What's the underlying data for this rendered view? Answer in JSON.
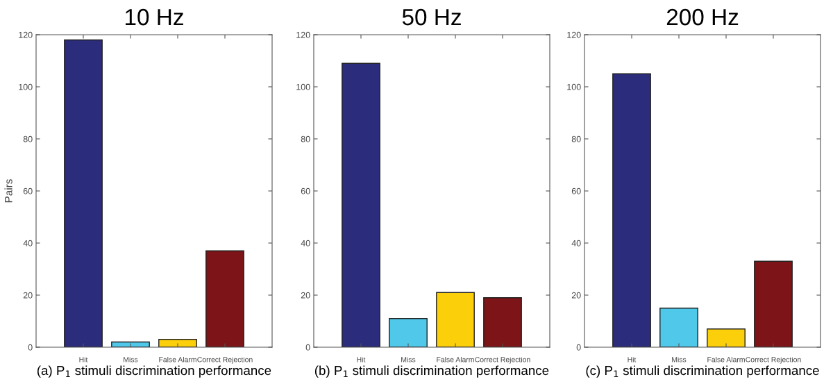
{
  "chart_data": [
    {
      "type": "bar",
      "title": "10 Hz",
      "ylabel": "Pairs",
      "xlabel": "(a) P$_{1}$ stimuli discrimination performance",
      "categories": [
        "Hit",
        "Miss",
        "False Alarm",
        "Correct Rejection"
      ],
      "values": [
        118,
        2,
        3,
        37
      ],
      "colors": [
        "#2b2c7c",
        "#50c8ea",
        "#fccf0b",
        "#7d1417"
      ],
      "ylim": [
        0,
        120
      ],
      "yticks": [
        0,
        20,
        40,
        60,
        80,
        100,
        120
      ],
      "grid": false,
      "legend": false
    },
    {
      "type": "bar",
      "title": "50 Hz",
      "xlabel": "(b) P$_{1}$ stimuli discrimination performance",
      "categories": [
        "Hit",
        "Miss",
        "False Alarm",
        "Correct Rejection"
      ],
      "values": [
        109,
        11,
        21,
        19
      ],
      "colors": [
        "#2b2c7c",
        "#50c8ea",
        "#fccf0b",
        "#7d1417"
      ],
      "ylim": [
        0,
        120
      ],
      "yticks": [
        0,
        20,
        40,
        60,
        80,
        100,
        120
      ],
      "grid": false,
      "legend": false
    },
    {
      "type": "bar",
      "title": "200 Hz",
      "xlabel": "(c) P$_{1}$ stimuli discrimination performance",
      "categories": [
        "Hit",
        "Miss",
        "False Alarm",
        "Correct Rejection"
      ],
      "values": [
        105,
        15,
        7,
        33
      ],
      "colors": [
        "#2b2c7c",
        "#50c8ea",
        "#fccf0b",
        "#7d1417"
      ],
      "ylim": [
        0,
        120
      ],
      "yticks": [
        0,
        20,
        40,
        60,
        80,
        100,
        120
      ],
      "grid": false,
      "legend": false
    }
  ]
}
